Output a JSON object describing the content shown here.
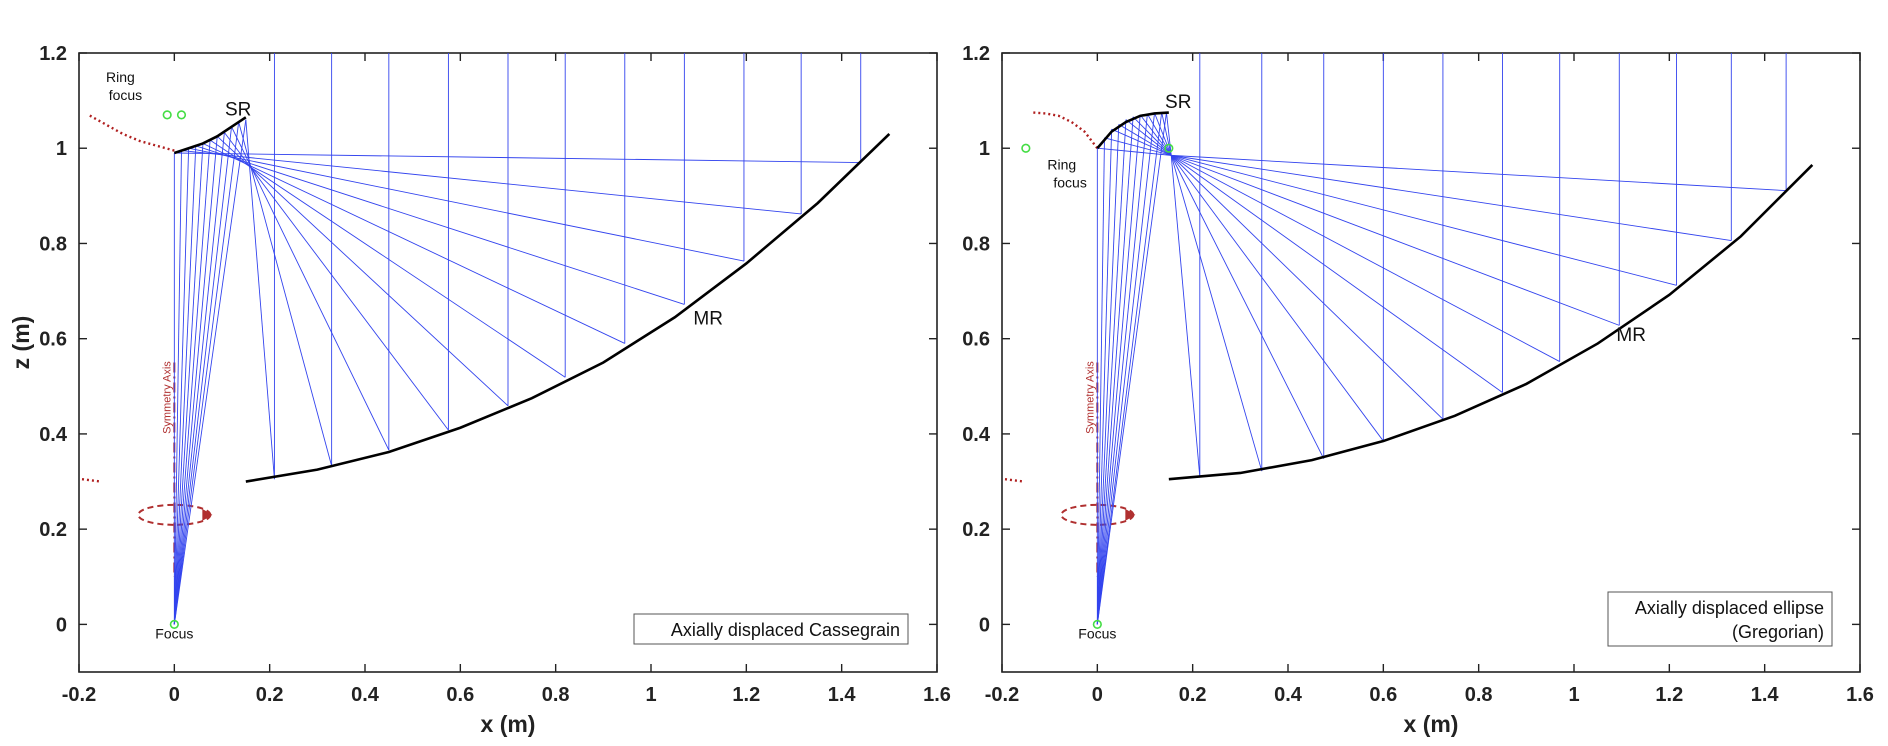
{
  "chart_data": [
    {
      "type": "line",
      "title": "",
      "xlabel": "x (m)",
      "ylabel": "z (m)",
      "xlim": [
        -0.2,
        1.6
      ],
      "ylim": [
        -0.1,
        1.2
      ],
      "xticks": [
        "-0.2",
        "0",
        "0.2",
        "0.4",
        "0.6",
        "0.8",
        "1",
        "1.2",
        "1.4",
        "1.6"
      ],
      "yticks": [
        "0",
        "0.2",
        "0.4",
        "0.6",
        "0.8",
        "1",
        "1.2"
      ],
      "legend_text": [
        "Axially displaced Cassegrain"
      ],
      "labels": {
        "sr": "SR",
        "mr": "MR",
        "ring_focus": [
          "Ring",
          "focus"
        ],
        "focus": "Focus",
        "symmetry_axis": "Symmetry Axis"
      },
      "sub_reflector": {
        "x": [
          0,
          0.03,
          0.06,
          0.09,
          0.12,
          0.15
        ],
        "z": [
          0.99,
          1.0,
          1.01,
          1.025,
          1.045,
          1.065
        ]
      },
      "main_reflector": {
        "x": [
          0.15,
          0.3,
          0.45,
          0.6,
          0.75,
          0.9,
          1.05,
          1.2,
          1.35,
          1.5
        ],
        "z": [
          0.3,
          0.325,
          0.362,
          0.413,
          0.475,
          0.55,
          0.645,
          0.758,
          0.885,
          1.03
        ]
      },
      "ring_focus_points": {
        "x": [
          -0.015,
          0.015
        ],
        "z": [
          1.07,
          1.07
        ]
      },
      "focus_point": {
        "x": 0,
        "z": 0
      },
      "rays_main_x": [
        0.21,
        0.33,
        0.45,
        0.575,
        0.7,
        0.82,
        0.945,
        1.07,
        1.195,
        1.315,
        1.44
      ],
      "rays_main_z": [
        0.305,
        0.333,
        0.366,
        0.408,
        0.459,
        0.519,
        0.59,
        0.672,
        0.763,
        0.862,
        0.97
      ],
      "rays_sub_x": [
        0,
        0.015,
        0.03,
        0.045,
        0.06,
        0.075,
        0.09,
        0.105,
        0.12,
        0.135,
        0.15
      ],
      "rays_sub_z": [
        0.99,
        0.995,
        1.0,
        1.005,
        1.01,
        1.017,
        1.025,
        1.033,
        1.045,
        1.055,
        1.06
      ]
    },
    {
      "type": "line",
      "title": "",
      "xlabel": "x (m)",
      "ylabel": "",
      "xlim": [
        -0.2,
        1.6
      ],
      "ylim": [
        -0.1,
        1.2
      ],
      "xticks": [
        "-0.2",
        "0",
        "0.2",
        "0.4",
        "0.6",
        "0.8",
        "1",
        "1.2",
        "1.4",
        "1.6"
      ],
      "yticks": [
        "0",
        "0.2",
        "0.4",
        "0.6",
        "0.8",
        "1",
        "1.2"
      ],
      "legend_text": [
        "Axially displaced ellipse",
        "(Gregorian)"
      ],
      "labels": {
        "sr": "SR",
        "mr": "MR",
        "ring_focus": [
          "Ring",
          "focus"
        ],
        "focus": "Focus",
        "symmetry_axis": "Symmetry Axis"
      },
      "sub_reflector": {
        "x": [
          0,
          0.03,
          0.06,
          0.09,
          0.12,
          0.15
        ],
        "z": [
          1.0,
          1.035,
          1.055,
          1.068,
          1.073,
          1.075
        ]
      },
      "main_reflector": {
        "x": [
          0.15,
          0.3,
          0.45,
          0.6,
          0.75,
          0.9,
          1.05,
          1.2,
          1.35,
          1.5
        ],
        "z": [
          0.305,
          0.318,
          0.345,
          0.385,
          0.438,
          0.505,
          0.59,
          0.692,
          0.815,
          0.965
        ]
      },
      "ring_focus_points": {
        "x": [
          -0.15,
          0.15
        ],
        "z": [
          1.0,
          1.0
        ]
      },
      "focus_point": {
        "x": 0,
        "z": 0
      },
      "rays_main_x": [
        0.215,
        0.345,
        0.475,
        0.6,
        0.725,
        0.85,
        0.97,
        1.095,
        1.215,
        1.33,
        1.445
      ],
      "rays_main_z": [
        0.31,
        0.322,
        0.348,
        0.385,
        0.431,
        0.487,
        0.552,
        0.628,
        0.712,
        0.806,
        0.911
      ],
      "rays_sub_x": [
        0,
        0.015,
        0.03,
        0.045,
        0.06,
        0.075,
        0.09,
        0.105,
        0.12,
        0.135,
        0.145
      ],
      "rays_sub_z": [
        1.0,
        1.022,
        1.04,
        1.05,
        1.06,
        1.066,
        1.07,
        1.072,
        1.074,
        1.075,
        1.075
      ],
      "convergence_point": {
        "x": 0.155,
        "z": 0.985
      }
    }
  ]
}
